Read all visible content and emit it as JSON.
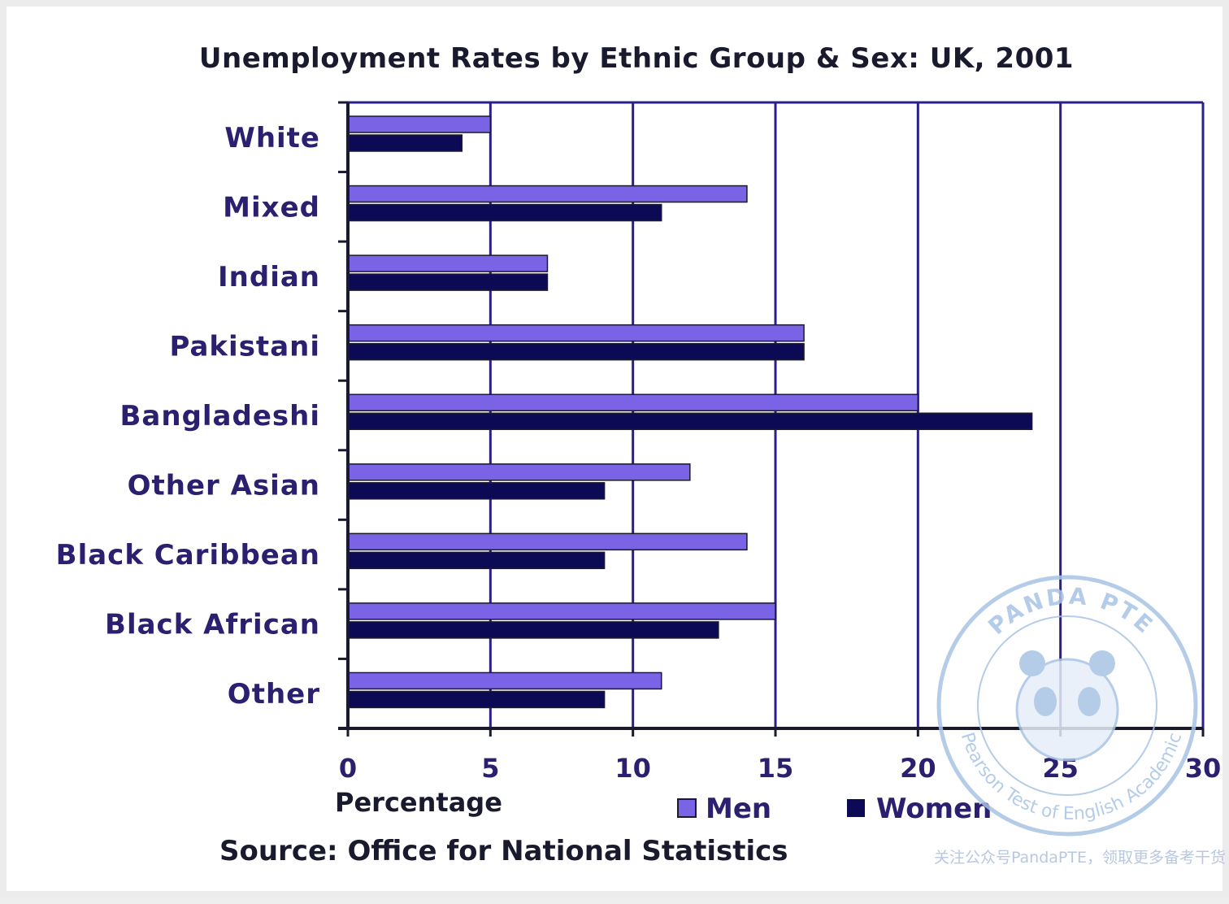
{
  "chart_data": {
    "type": "bar",
    "orientation": "horizontal",
    "title": "Unemployment Rates by Ethnic Group & Sex: UK, 2001",
    "categories": [
      "White",
      "Mixed",
      "Indian",
      "Pakistani",
      "Bangladeshi",
      "Other Asian",
      "Black Caribbean",
      "Black African",
      "Other"
    ],
    "series": [
      {
        "name": "Men",
        "values": [
          5,
          14,
          7,
          16,
          20,
          12,
          14,
          15,
          11
        ],
        "color": "#7b63e6"
      },
      {
        "name": "Women",
        "values": [
          4,
          11,
          7,
          16,
          24,
          9,
          9,
          13,
          9
        ],
        "color": "#0d0a55"
      }
    ],
    "xlabel": "Percentage",
    "ylabel": "",
    "xlim": [
      0,
      30
    ],
    "xticks": [
      "0",
      "5",
      "10",
      "15",
      "20",
      "25",
      "30"
    ],
    "grid": true,
    "legend_position": "bottom",
    "source": "Source: Office for National Statistics"
  },
  "watermark": {
    "seal_top": "PANDA PTE",
    "seal_bottom": "Pearson Test of English Academic",
    "caption": "关注公众号PandaPTE，领取更多备考干货"
  },
  "colors": {
    "grid": "#2b1f8a",
    "axis": "#1a1a2e"
  }
}
